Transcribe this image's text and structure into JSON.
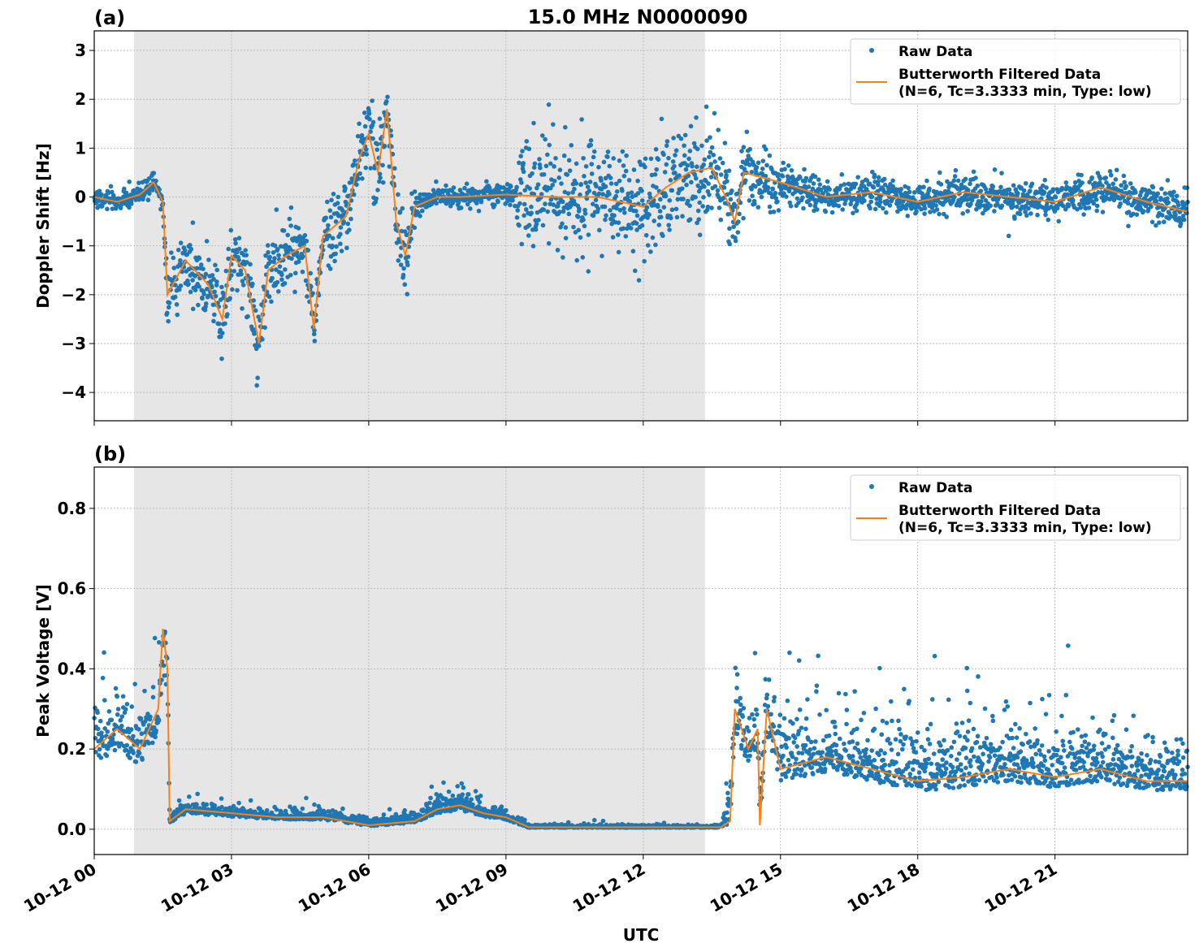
{
  "chart_data": {
    "title": "15.0 MHz N0000090",
    "xlabel": "UTC",
    "xticks": [
      {
        "h": 0,
        "label": "10-12 00"
      },
      {
        "h": 3,
        "label": "10-12 03"
      },
      {
        "h": 6,
        "label": "10-12 06"
      },
      {
        "h": 9,
        "label": "10-12 09"
      },
      {
        "h": 12,
        "label": "10-12 12"
      },
      {
        "h": 15,
        "label": "10-12 15"
      },
      {
        "h": 18,
        "label": "10-12 18"
      },
      {
        "h": 21,
        "label": "10-12 21"
      }
    ],
    "xlim_hours": [
      0,
      23.9
    ],
    "shaded_interval_hours": [
      0.87,
      13.35
    ],
    "legend": {
      "raw": "Raw Data",
      "filtered_line1": "Butterworth Filtered Data",
      "filtered_line2": "(N=6, Tc=3.3333 min, Type: low)",
      "placement": "top-right"
    },
    "colors": {
      "raw": "#1f77b4",
      "filtered": "#ff7f0e",
      "shade": "#e6e6e6"
    },
    "panels": [
      {
        "label": "(a)",
        "type": "scatter+line",
        "ylabel": "Doppler Shift [Hz]",
        "ylim": [
          -4.58,
          3.4
        ],
        "yticks": [
          {
            "v": 3,
            "label": "3"
          },
          {
            "v": 2,
            "label": "2"
          },
          {
            "v": 1,
            "label": "1"
          },
          {
            "v": 0,
            "label": "0"
          },
          {
            "v": -1,
            "label": "−1"
          },
          {
            "v": -2,
            "label": "−2"
          },
          {
            "v": -3,
            "label": "−3"
          },
          {
            "v": -4,
            "label": "−4"
          }
        ],
        "filtered": [
          [
            0,
            0
          ],
          [
            0.5,
            -0.1
          ],
          [
            1,
            0.05
          ],
          [
            1.3,
            0.3
          ],
          [
            1.5,
            -0.1
          ],
          [
            1.6,
            -2.0
          ],
          [
            2,
            -1.3
          ],
          [
            2.5,
            -1.8
          ],
          [
            2.8,
            -2.5
          ],
          [
            3,
            -1.2
          ],
          [
            3.3,
            -1.5
          ],
          [
            3.6,
            -3.0
          ],
          [
            3.8,
            -1.5
          ],
          [
            4.2,
            -1.2
          ],
          [
            4.6,
            -1.0
          ],
          [
            4.8,
            -2.7
          ],
          [
            5,
            -0.8
          ],
          [
            5.5,
            -0.4
          ],
          [
            5.8,
            0.8
          ],
          [
            6,
            1.3
          ],
          [
            6.2,
            0.5
          ],
          [
            6.4,
            1.8
          ],
          [
            6.6,
            -0.5
          ],
          [
            6.8,
            -1.2
          ],
          [
            7,
            -0.2
          ],
          [
            7.5,
            0
          ],
          [
            8,
            0
          ],
          [
            9,
            0.05
          ],
          [
            10,
            0
          ],
          [
            11,
            0
          ],
          [
            12,
            -0.2
          ],
          [
            12.5,
            0.2
          ],
          [
            13,
            0.5
          ],
          [
            13.5,
            0.6
          ],
          [
            13.8,
            0
          ],
          [
            14,
            -0.5
          ],
          [
            14.2,
            0.5
          ],
          [
            15,
            0.3
          ],
          [
            16,
            0
          ],
          [
            17,
            0.1
          ],
          [
            18,
            -0.1
          ],
          [
            19,
            0.1
          ],
          [
            20,
            0
          ],
          [
            21,
            -0.1
          ],
          [
            22,
            0.2
          ],
          [
            23,
            -0.1
          ],
          [
            23.9,
            -0.3
          ]
        ],
        "raw_spread": [
          [
            0,
            0.1
          ],
          [
            1.5,
            0.1
          ],
          [
            1.6,
            0.35
          ],
          [
            5.5,
            0.35
          ],
          [
            5.6,
            0.4
          ],
          [
            7,
            0.4
          ],
          [
            7.1,
            0.1
          ],
          [
            9.2,
            0.1
          ],
          [
            9.3,
            0.55
          ],
          [
            13.8,
            0.55
          ],
          [
            13.9,
            0.3
          ],
          [
            15,
            0.3
          ],
          [
            15.1,
            0.18
          ],
          [
            23.9,
            0.18
          ]
        ]
      },
      {
        "label": "(b)",
        "type": "scatter+line",
        "ylabel": "Peak Voltage [V]",
        "ylim": [
          -0.063,
          0.903
        ],
        "yticks": [
          {
            "v": 0.8,
            "label": "0.8"
          },
          {
            "v": 0.6,
            "label": "0.6"
          },
          {
            "v": 0.4,
            "label": "0.4"
          },
          {
            "v": 0.2,
            "label": "0.2"
          },
          {
            "v": 0,
            "label": "0.0"
          }
        ],
        "filtered": [
          [
            0,
            0.2
          ],
          [
            0.5,
            0.25
          ],
          [
            1,
            0.2
          ],
          [
            1.4,
            0.3
          ],
          [
            1.5,
            0.5
          ],
          [
            1.6,
            0.4
          ],
          [
            1.65,
            0.02
          ],
          [
            2,
            0.05
          ],
          [
            3,
            0.04
          ],
          [
            4,
            0.03
          ],
          [
            5,
            0.03
          ],
          [
            6,
            0.01
          ],
          [
            7,
            0.02
          ],
          [
            7.5,
            0.05
          ],
          [
            8,
            0.06
          ],
          [
            8.5,
            0.04
          ],
          [
            9,
            0.03
          ],
          [
            9.5,
            0.005
          ],
          [
            13.7,
            0.005
          ],
          [
            13.9,
            0.02
          ],
          [
            14,
            0.3
          ],
          [
            14.3,
            0.2
          ],
          [
            14.5,
            0.25
          ],
          [
            14.55,
            0.01
          ],
          [
            14.7,
            0.3
          ],
          [
            15,
            0.15
          ],
          [
            16,
            0.18
          ],
          [
            17,
            0.15
          ],
          [
            18,
            0.12
          ],
          [
            19,
            0.13
          ],
          [
            20,
            0.15
          ],
          [
            21,
            0.13
          ],
          [
            22,
            0.15
          ],
          [
            23,
            0.12
          ],
          [
            23.9,
            0.12
          ]
        ],
        "raw_spread": [
          [
            0,
            0.08
          ],
          [
            1.6,
            0.09
          ],
          [
            1.65,
            0.015
          ],
          [
            7,
            0.015
          ],
          [
            8,
            0.03
          ],
          [
            9.5,
            0.004
          ],
          [
            13.7,
            0.004
          ],
          [
            14,
            0.09
          ],
          [
            23.9,
            0.08
          ]
        ]
      }
    ]
  }
}
